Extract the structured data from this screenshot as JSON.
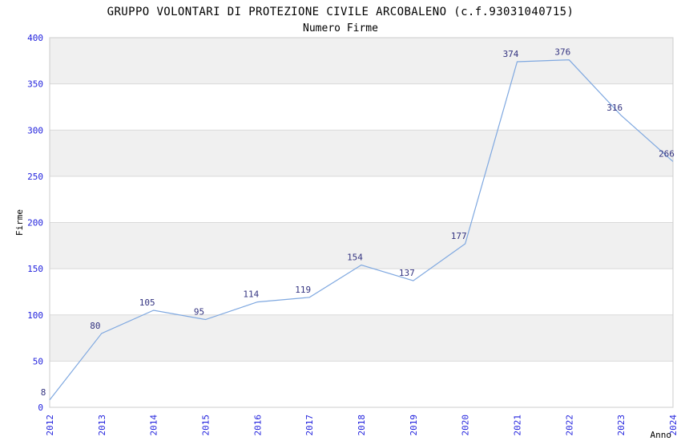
{
  "chart_data": {
    "type": "line",
    "title": "GRUPPO VOLONTARI DI PROTEZIONE CIVILE ARCOBALENO (c.f.93031040715)",
    "subtitle": "Numero Firme",
    "xlabel": "Anno",
    "ylabel": "Firme",
    "categories": [
      "2012",
      "2013",
      "2014",
      "2015",
      "2016",
      "2017",
      "2018",
      "2019",
      "2020",
      "2021",
      "2022",
      "2023",
      "2024"
    ],
    "values": [
      8,
      80,
      105,
      95,
      114,
      119,
      154,
      137,
      177,
      374,
      376,
      316,
      266
    ],
    "ylim": [
      0,
      400
    ],
    "ytick_step": 50,
    "yticks": [
      0,
      50,
      100,
      150,
      200,
      250,
      300,
      350,
      400
    ],
    "grid": "alternating-horizontal-bands",
    "legend": "none",
    "colors": {
      "line": "#7fa8e0",
      "tick_label": "#2222dd",
      "value_label": "#333380",
      "band": "#f0f0f0",
      "grid_line": "#d9d9d9",
      "plot_border": "#cccccc",
      "text": "#000000",
      "background": "#ffffff"
    }
  }
}
